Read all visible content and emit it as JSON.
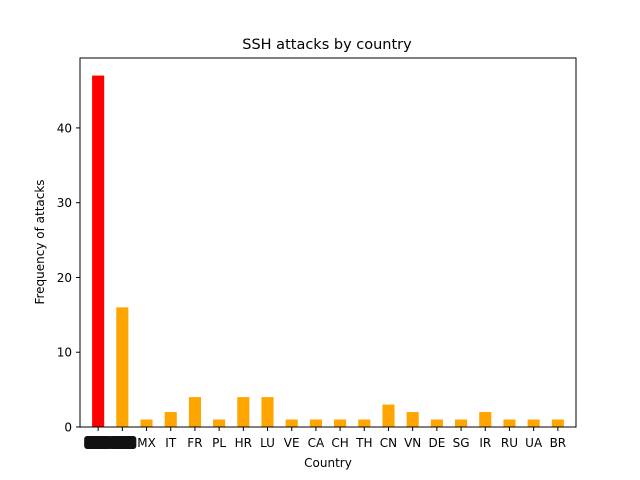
{
  "chart_data": {
    "type": "bar",
    "title": "SSH attacks by country",
    "xlabel": "Country",
    "ylabel": "Frequency of attacks",
    "categories": [
      "",
      "",
      "MX",
      "IT",
      "FR",
      "PL",
      "HR",
      "LU",
      "VE",
      "CA",
      "CH",
      "TH",
      "CN",
      "VN",
      "DE",
      "SG",
      "IR",
      "RU",
      "UA",
      "BR"
    ],
    "redacted_categories": [
      0,
      1
    ],
    "values": [
      47,
      16,
      1,
      2,
      4,
      1,
      4,
      4,
      1,
      1,
      1,
      1,
      3,
      2,
      1,
      1,
      2,
      1,
      1,
      1
    ],
    "colors": [
      "#ff0000",
      "#ffa500",
      "#ffa500",
      "#ffa500",
      "#ffa500",
      "#ffa500",
      "#ffa500",
      "#ffa500",
      "#ffa500",
      "#ffa500",
      "#ffa500",
      "#ffa500",
      "#ffa500",
      "#ffa500",
      "#ffa500",
      "#ffa500",
      "#ffa500",
      "#ffa500",
      "#ffa500",
      "#ffa500"
    ],
    "ylim": [
      0,
      49.35
    ],
    "yticks": [
      0,
      10,
      20,
      30,
      40
    ],
    "grid": false,
    "legend": "none"
  }
}
